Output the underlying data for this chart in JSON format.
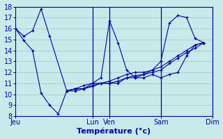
{
  "title": "Température (°c)",
  "bg_color": "#c8eaea",
  "grid_color": "#a0cccc",
  "line_color": "#0000aa",
  "ylim": [
    8,
    18
  ],
  "yticks": [
    8,
    9,
    10,
    11,
    12,
    13,
    14,
    15,
    16,
    17,
    18
  ],
  "day_labels": [
    "Jeu",
    "Lun",
    "Ven",
    "Sam",
    "Dim"
  ],
  "day_tick_pos": [
    0,
    9,
    11,
    17,
    23
  ],
  "xlim": [
    0,
    23
  ],
  "series": [
    {
      "x": [
        0,
        1,
        2,
        3,
        4,
        5,
        6,
        7,
        8,
        9,
        10,
        11,
        12,
        13,
        14,
        15,
        16,
        17,
        18,
        19,
        20,
        21,
        22
      ],
      "y": [
        16.0,
        14.9,
        14.0,
        10.1,
        9.0,
        8.2,
        10.3,
        10.5,
        10.5,
        11.0,
        11.0,
        11.0,
        11.0,
        11.5,
        11.5,
        11.5,
        11.8,
        11.5,
        11.8,
        12.0,
        13.5,
        14.5,
        14.7
      ]
    },
    {
      "x": [
        0,
        1,
        2,
        3,
        4,
        6,
        7,
        8,
        9,
        10,
        11,
        12,
        13,
        14,
        15,
        16,
        17,
        18,
        19,
        20,
        21,
        22
      ],
      "y": [
        16.0,
        15.3,
        15.8,
        17.8,
        15.3,
        10.3,
        10.5,
        10.8,
        11.0,
        11.5,
        16.7,
        14.7,
        12.2,
        11.5,
        11.8,
        12.2,
        13.0,
        16.5,
        17.2,
        17.0,
        15.1,
        14.7
      ]
    },
    {
      "x": [
        6,
        7,
        8,
        9,
        10,
        11,
        12,
        13,
        14,
        15,
        16,
        17,
        18,
        19,
        20,
        21,
        22
      ],
      "y": [
        10.3,
        10.5,
        10.5,
        10.8,
        11.0,
        11.2,
        11.5,
        11.8,
        12.0,
        12.0,
        12.2,
        12.5,
        13.0,
        13.5,
        14.0,
        14.5,
        14.7
      ]
    },
    {
      "x": [
        6,
        7,
        8,
        9,
        10,
        11,
        12,
        13,
        14,
        15,
        16,
        17,
        18,
        19,
        20,
        21,
        22
      ],
      "y": [
        10.3,
        10.3,
        10.5,
        10.7,
        11.0,
        11.0,
        11.2,
        11.5,
        11.7,
        11.8,
        12.0,
        12.2,
        12.8,
        13.3,
        13.8,
        14.2,
        14.7
      ]
    }
  ],
  "vline_positions": [
    9,
    11,
    17,
    23
  ],
  "ylabel_fontsize": 7,
  "xlabel_fontsize": 8
}
